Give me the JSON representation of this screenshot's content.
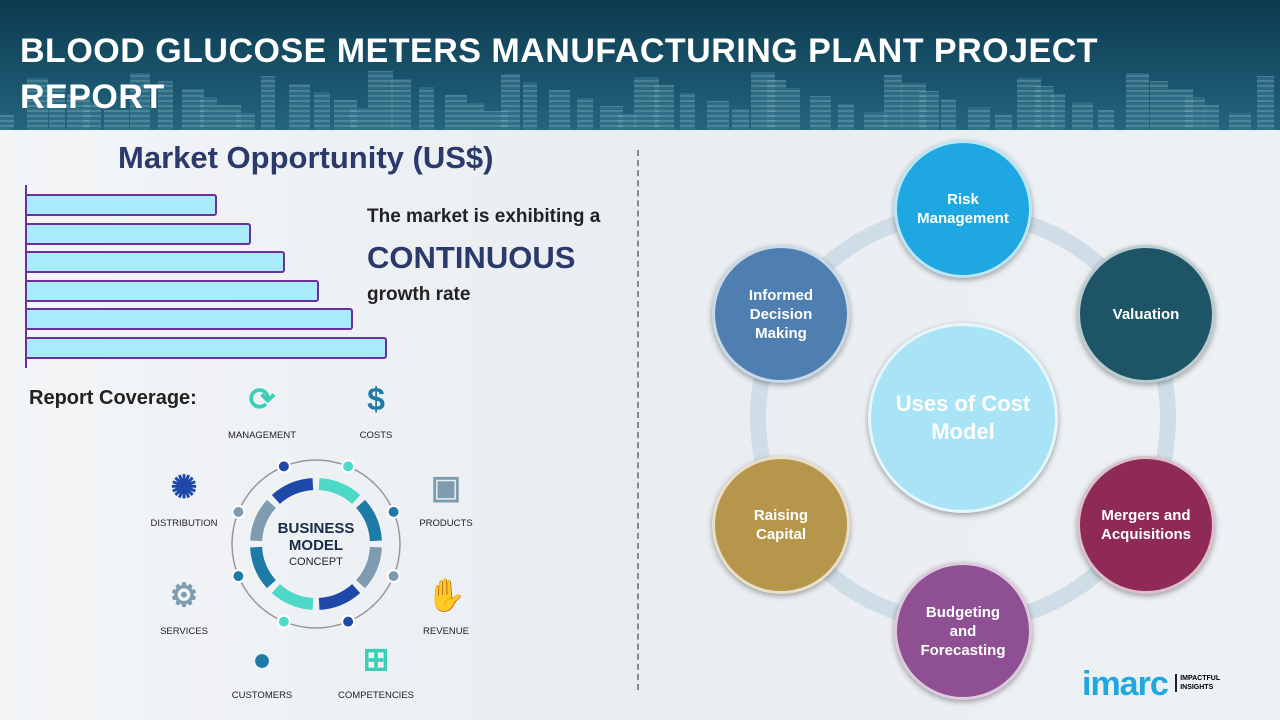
{
  "header": {
    "title": "BLOOD GLUCOSE METERS MANUFACTURING PLANT PROJECT REPORT"
  },
  "market": {
    "title": "Market Opportunity (US$)",
    "line1": "The market is exhibiting a",
    "highlight": "CONTINUOUS",
    "line2": "growth rate",
    "bar_levels": [
      1,
      2,
      3,
      4,
      5,
      6
    ],
    "bar_color": "#a8ecfb",
    "bar_border": "#6b2fa0"
  },
  "coverage": {
    "label": "Report Coverage:",
    "center_line1": "BUSINESS",
    "center_line2": "MODEL",
    "center_line3": "CONCEPT",
    "items": [
      {
        "label": "MANAGEMENT",
        "icon": "lightbulb-cycle-icon"
      },
      {
        "label": "COSTS",
        "icon": "money-bag-icon"
      },
      {
        "label": "PRODUCTS",
        "icon": "box-icon"
      },
      {
        "label": "REVENUE",
        "icon": "hand-coins-icon"
      },
      {
        "label": "COMPETENCIES",
        "icon": "hierarchy-icon"
      },
      {
        "label": "CUSTOMERS",
        "icon": "person-icon"
      },
      {
        "label": "SERVICES",
        "icon": "gears-icon"
      },
      {
        "label": "DISTRIBUTION",
        "icon": "network-icon"
      }
    ]
  },
  "cost_model": {
    "center": "Uses of Cost Model",
    "center_color": "#a8e4f5",
    "items": [
      {
        "label": "Risk Management",
        "color": "#1ea7e0"
      },
      {
        "label": "Valuation",
        "color": "#1d5566"
      },
      {
        "label": "Mergers and Acquisitions",
        "color": "#8e2a55"
      },
      {
        "label": "Budgeting and Forecasting",
        "color": "#8e4f93"
      },
      {
        "label": "Raising Capital",
        "color": "#b5964a"
      },
      {
        "label": "Informed Decision Making",
        "color": "#4f7fb0"
      }
    ]
  },
  "logo": {
    "brand": "imarc",
    "tagline1": "IMPACTFUL",
    "tagline2": "INSIGHTS"
  }
}
